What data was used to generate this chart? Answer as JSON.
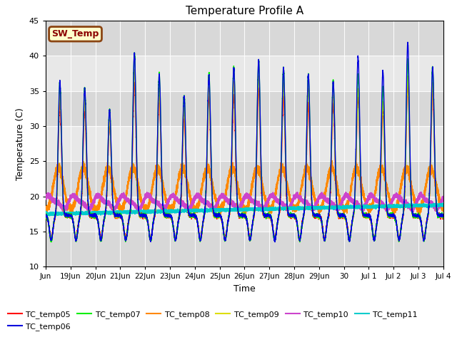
{
  "title": "Temperature Profile A",
  "xlabel": "Time",
  "ylabel": "Temperature (C)",
  "ylim": [
    10,
    45
  ],
  "xlim": [
    0,
    16
  ],
  "background_color": "#ffffff",
  "plot_bg_color": "#e8e8e8",
  "plot_bg_stripe_color": "#d8d8d8",
  "sw_temp_label": "SW_Temp",
  "sw_temp_box_color": "#ffffcc",
  "sw_temp_text_color": "#8b0000",
  "sw_temp_border_color": "#8b4513",
  "series": {
    "TC_temp05": {
      "color": "#ff0000",
      "lw": 1.0
    },
    "TC_temp06": {
      "color": "#0000dd",
      "lw": 1.0
    },
    "TC_temp07": {
      "color": "#00ee00",
      "lw": 1.0
    },
    "TC_temp08": {
      "color": "#ff8800",
      "lw": 1.2
    },
    "TC_temp09": {
      "color": "#dddd00",
      "lw": 1.0
    },
    "TC_temp10": {
      "color": "#cc44cc",
      "lw": 1.8
    },
    "TC_temp11": {
      "color": "#00cccc",
      "lw": 1.8
    }
  },
  "xtick_labels": [
    "Jun",
    "19Jun",
    "20Jun",
    "21Jun",
    "22Jun",
    "23Jun",
    "24Jun",
    "25Jun",
    "26Jun",
    "27Jun",
    "28Jun",
    "29Jun",
    "30",
    "Jul 1",
    "Jul 2",
    "Jul 3",
    "Jul 4"
  ],
  "ytick_labels": [
    10,
    15,
    20,
    25,
    30,
    35,
    40,
    45
  ],
  "legend_order": [
    "TC_temp05",
    "TC_temp06",
    "TC_temp07",
    "TC_temp08",
    "TC_temp09",
    "TC_temp10",
    "TC_temp11"
  ]
}
